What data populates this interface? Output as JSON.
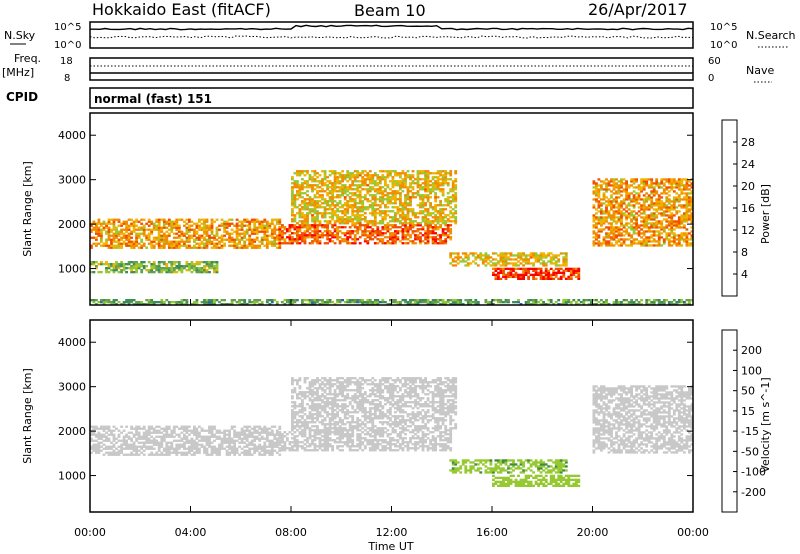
{
  "header": {
    "title": "Hokkaido East (fitACF)",
    "beam": "Beam 10",
    "date": "26/Apr/2017"
  },
  "top_panels": {
    "nsky_label": "N.Sky",
    "nsearch_label": "N.Search",
    "nsky_ticks": [
      "10^5",
      "10^0"
    ],
    "nsearch_ticks": [
      "10^5",
      "10^0"
    ],
    "freq_label": "Freq.",
    "freq_unit": "[MHz]",
    "freq_ticks": [
      "18",
      "8"
    ],
    "nave_label": "Nave",
    "nave_ticks": [
      "60",
      "0"
    ],
    "cpid_label": "CPID",
    "cpid_value": "normal (fast) 151"
  },
  "colors": {
    "power_scale": [
      "#0000ff",
      "#2a5fb4",
      "#3c8c5a",
      "#64a050",
      "#96c832",
      "#f0b400",
      "#f08c00",
      "#f05000",
      "#ff0000"
    ],
    "velocity_scale": [
      "#ff0000",
      "#ff5000",
      "#ff9600",
      "#ffc800",
      "#c8c8c8",
      "#96c832",
      "#3c8c3c",
      "#2a6ea0",
      "#1e3cc8"
    ]
  },
  "chart_data": [
    {
      "type": "heatmap",
      "title": "",
      "ylabel": "Slant Range [km]",
      "xlabel": "",
      "ylim": [
        180,
        4500
      ],
      "y_ticks": [
        "1000",
        "2000",
        "3000",
        "4000"
      ],
      "x_tick_labels": [
        "00:00",
        "04:00",
        "08:00",
        "12:00",
        "16:00",
        "20:00",
        "00:00"
      ],
      "colorbar": {
        "label": "Power [dB]",
        "ticks": [
          "4",
          "8",
          "12",
          "16",
          "20",
          "24",
          "28"
        ],
        "range": [
          0,
          32
        ]
      },
      "echo_regions": [
        {
          "t": [
            0.0,
            7.5
          ],
          "range": [
            1450,
            2100
          ],
          "power_db": 22
        },
        {
          "t": [
            0.0,
            5.0
          ],
          "range": [
            900,
            1150
          ],
          "power_db": 14
        },
        {
          "t": [
            7.5,
            14.3
          ],
          "range": [
            1550,
            2000
          ],
          "power_db": 26
        },
        {
          "t": [
            8.0,
            14.5
          ],
          "range": [
            2000,
            3200
          ],
          "power_db": 20
        },
        {
          "t": [
            14.3,
            19.0
          ],
          "range": [
            1050,
            1350
          ],
          "power_db": 20
        },
        {
          "t": [
            16.0,
            19.5
          ],
          "range": [
            750,
            1000
          ],
          "power_db": 28
        },
        {
          "t": [
            20.0,
            24.0
          ],
          "range": [
            1500,
            3000
          ],
          "power_db": 22
        },
        {
          "t": [
            0.0,
            24.0
          ],
          "range": [
            180,
            300
          ],
          "power_db": 12
        }
      ]
    },
    {
      "type": "heatmap",
      "title": "",
      "ylabel": "Slant Range [km]",
      "xlabel": "Time UT",
      "ylim": [
        180,
        4500
      ],
      "y_ticks": [
        "1000",
        "2000",
        "3000",
        "4000"
      ],
      "x_tick_labels": [
        "00:00",
        "04:00",
        "08:00",
        "12:00",
        "16:00",
        "20:00",
        "00:00"
      ],
      "colorbar": {
        "label": "Velocity [m s^-1]",
        "ticks": [
          "200",
          "100",
          "50",
          "15",
          "-15",
          "-50",
          "-100",
          "-200"
        ]
      },
      "echo_regions": [
        {
          "t": [
            0.0,
            7.5
          ],
          "range": [
            1450,
            2100
          ],
          "velocity": 0
        },
        {
          "t": [
            7.5,
            14.3
          ],
          "range": [
            1550,
            2000
          ],
          "velocity": 0
        },
        {
          "t": [
            8.0,
            14.5
          ],
          "range": [
            2000,
            3200
          ],
          "velocity": 0
        },
        {
          "t": [
            14.3,
            19.0
          ],
          "range": [
            1050,
            1350
          ],
          "velocity": 40
        },
        {
          "t": [
            16.0,
            19.5
          ],
          "range": [
            750,
            1000
          ],
          "velocity": 30
        },
        {
          "t": [
            20.0,
            24.0
          ],
          "range": [
            1500,
            3000
          ],
          "velocity": 0
        }
      ]
    }
  ]
}
